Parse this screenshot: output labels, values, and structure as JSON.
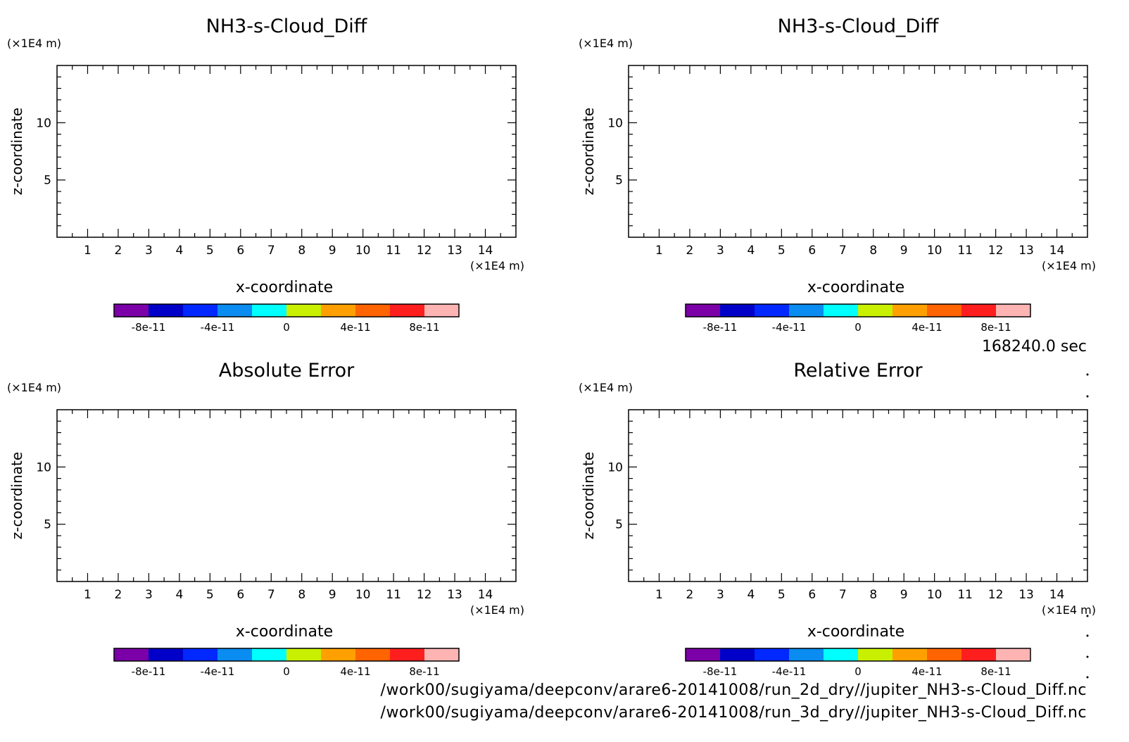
{
  "chart_data": [
    {
      "type": "heatmap",
      "title": "NH3-s-Cloud_Diff",
      "xlabel": "x-coordinate",
      "ylabel": "z-coordinate",
      "x_unit": "(×1E4 m)",
      "y_unit": "(×1E4 m)",
      "xlim": [
        0,
        15
      ],
      "ylim": [
        0,
        15
      ],
      "x_ticks": [
        1,
        2,
        3,
        4,
        5,
        6,
        7,
        8,
        9,
        10,
        11,
        12,
        13,
        14
      ],
      "y_ticks": [
        5,
        10
      ],
      "colorbar": {
        "colors": [
          "#7b00a8",
          "#0000c8",
          "#0028ff",
          "#0a8cf0",
          "#00ffff",
          "#c8f000",
          "#ffa000",
          "#ff6400",
          "#ff1e1e",
          "#ffb4b4"
        ],
        "tick_labels": [
          "-8e-11",
          "-4e-11",
          "0",
          "4e-11",
          "8e-11"
        ]
      }
    },
    {
      "type": "heatmap",
      "title": "NH3-s-Cloud_Diff",
      "xlabel": "x-coordinate",
      "ylabel": "z-coordinate",
      "x_unit": "(×1E4 m)",
      "y_unit": "(×1E4 m)",
      "xlim": [
        0,
        15
      ],
      "ylim": [
        0,
        15
      ],
      "x_ticks": [
        1,
        2,
        3,
        4,
        5,
        6,
        7,
        8,
        9,
        10,
        11,
        12,
        13,
        14
      ],
      "y_ticks": [
        5,
        10
      ],
      "colorbar": {
        "colors": [
          "#7b00a8",
          "#0000c8",
          "#0028ff",
          "#0a8cf0",
          "#00ffff",
          "#c8f000",
          "#ffa000",
          "#ff6400",
          "#ff1e1e",
          "#ffb4b4"
        ],
        "tick_labels": [
          "-8e-11",
          "-4e-11",
          "0",
          "4e-11",
          "8e-11"
        ]
      }
    },
    {
      "type": "heatmap",
      "title": "Absolute Error",
      "xlabel": "x-coordinate",
      "ylabel": "z-coordinate",
      "x_unit": "(×1E4 m)",
      "y_unit": "(×1E4 m)",
      "xlim": [
        0,
        15
      ],
      "ylim": [
        0,
        15
      ],
      "x_ticks": [
        1,
        2,
        3,
        4,
        5,
        6,
        7,
        8,
        9,
        10,
        11,
        12,
        13,
        14
      ],
      "y_ticks": [
        5,
        10
      ],
      "colorbar": {
        "colors": [
          "#7b00a8",
          "#0000c8",
          "#0028ff",
          "#0a8cf0",
          "#00ffff",
          "#c8f000",
          "#ffa000",
          "#ff6400",
          "#ff1e1e",
          "#ffb4b4"
        ],
        "tick_labels": [
          "-8e-11",
          "-4e-11",
          "0",
          "4e-11",
          "8e-11"
        ]
      }
    },
    {
      "type": "heatmap",
      "title": "Relative Error",
      "xlabel": "x-coordinate",
      "ylabel": "z-coordinate",
      "x_unit": "(×1E4 m)",
      "y_unit": "(×1E4 m)",
      "xlim": [
        0,
        15
      ],
      "ylim": [
        0,
        15
      ],
      "x_ticks": [
        1,
        2,
        3,
        4,
        5,
        6,
        7,
        8,
        9,
        10,
        11,
        12,
        13,
        14
      ],
      "y_ticks": [
        5,
        10
      ],
      "colorbar": {
        "colors": [
          "#7b00a8",
          "#0000c8",
          "#0028ff",
          "#0a8cf0",
          "#00ffff",
          "#c8f000",
          "#ffa000",
          "#ff6400",
          "#ff1e1e",
          "#ffb4b4"
        ],
        "tick_labels": [
          "-8e-11",
          "-4e-11",
          "0",
          "4e-11",
          "8e-11"
        ]
      }
    }
  ],
  "timestamp": "168240.0 sec",
  "file_paths": [
    "/work00/sugiyama/deepconv/arare6-20141008/run_2d_dry//jupiter_NH3-s-Cloud_Diff.nc",
    "/work00/sugiyama/deepconv/arare6-20141008/run_3d_dry//jupiter_NH3-s-Cloud_Diff.nc"
  ]
}
